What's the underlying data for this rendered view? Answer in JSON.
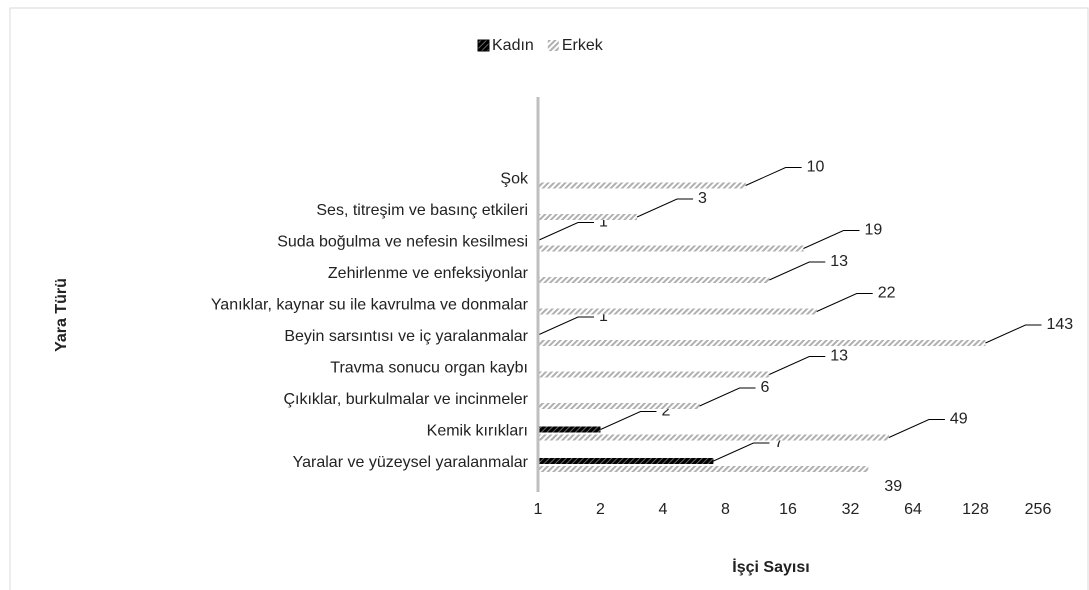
{
  "chart_data": {
    "type": "bar",
    "orientation": "horizontal",
    "categories": [
      "Yaralar ve yüzeysel yaralanmalar",
      "Kemik kırıkları",
      "Çıkıklar, burkulmalar ve incinmeler",
      "Travma sonucu organ kaybı ",
      "Beyin sarsıntısı ve iç yaralanmalar",
      "Yanıklar, kaynar su ile kavrulma ve donmalar",
      "Zehirlenme ve enfeksiyonlar",
      "Suda boğulma ve nefesin kesilmesi",
      "Ses, titreşim ve basınç etkileri",
      "Şok"
    ],
    "series": [
      {
        "name": "Kadın",
        "color": "#000000",
        "values": [
          7,
          2,
          null,
          null,
          1,
          null,
          null,
          1,
          null,
          null
        ]
      },
      {
        "name": "Erkek",
        "color": "#bfbfbf",
        "values": [
          39,
          49,
          6,
          13,
          143,
          22,
          13,
          19,
          3,
          10
        ]
      }
    ],
    "x_label": "İşçi Sayısı",
    "y_label": "Yara Türü",
    "xscale": "log2",
    "xlim": [
      1,
      256
    ],
    "xticks": [
      1,
      2,
      4,
      8,
      16,
      32,
      64,
      128,
      256
    ],
    "legend": "top"
  }
}
